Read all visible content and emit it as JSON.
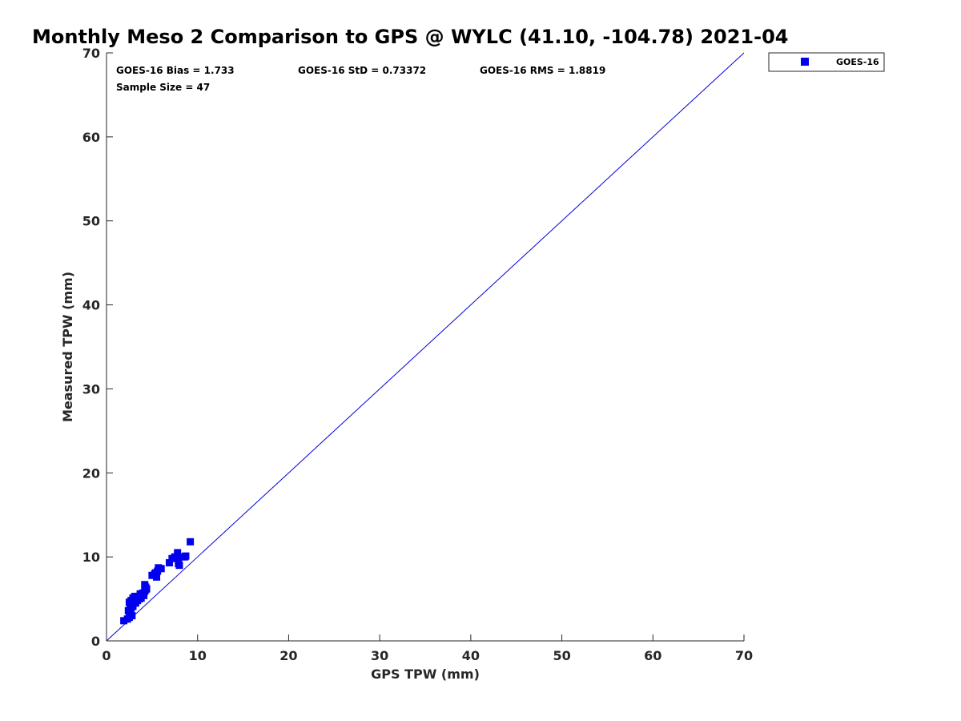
{
  "chart_data": {
    "type": "scatter",
    "title": "Monthly Meso 2 Comparison to GPS @ WYLC (41.10, -104.78) 2021-04",
    "xlabel": "GPS TPW (mm)",
    "ylabel": "Measured TPW (mm)",
    "xlim": [
      0,
      70
    ],
    "ylim": [
      0,
      70
    ],
    "xticks": [
      "0",
      "10",
      "20",
      "30",
      "40",
      "50",
      "60",
      "70"
    ],
    "yticks": [
      "0",
      "10",
      "20",
      "30",
      "40",
      "50",
      "60",
      "70"
    ],
    "grid": false,
    "legend_position": "outside-top-right",
    "reference_line": {
      "label": "1:1 line",
      "from": [
        0,
        0
      ],
      "to": [
        70,
        70
      ],
      "color": "#0000dd"
    },
    "stats": {
      "bias": "GOES-16 Bias = 1.733",
      "std": "GOES-16 StD = 0.73372",
      "rms": "GOES-16 RMS = 1.8819",
      "sample_size": "Sample Size = 47"
    },
    "series": [
      {
        "name": "GOES-16",
        "color": "#0000ee",
        "marker": "square",
        "points": [
          [
            1.9,
            2.4
          ],
          [
            2.3,
            2.6
          ],
          [
            2.5,
            2.8
          ],
          [
            2.6,
            3.3
          ],
          [
            2.4,
            3.6
          ],
          [
            2.7,
            3.9
          ],
          [
            2.9,
            4.1
          ],
          [
            2.5,
            4.6
          ],
          [
            2.7,
            4.8
          ],
          [
            3.0,
            4.6
          ],
          [
            2.9,
            5.1
          ],
          [
            3.1,
            5.3
          ],
          [
            3.4,
            4.8
          ],
          [
            3.6,
            5.0
          ],
          [
            3.5,
            5.3
          ],
          [
            3.8,
            5.1
          ],
          [
            3.9,
            5.5
          ],
          [
            4.1,
            5.4
          ],
          [
            4.0,
            5.7
          ],
          [
            4.2,
            5.9
          ],
          [
            4.3,
            6.1
          ],
          [
            4.3,
            6.4
          ],
          [
            4.2,
            6.7
          ],
          [
            3.2,
            4.5
          ],
          [
            2.8,
            3.0
          ],
          [
            5.0,
            7.8
          ],
          [
            5.3,
            8.0
          ],
          [
            5.5,
            7.6
          ],
          [
            5.6,
            8.3
          ],
          [
            5.7,
            8.7
          ],
          [
            5.4,
            8.1
          ],
          [
            6.9,
            9.3
          ],
          [
            7.2,
            9.8
          ],
          [
            7.5,
            10.0
          ],
          [
            7.8,
            10.5
          ],
          [
            7.9,
            9.2
          ],
          [
            8.2,
            10.0
          ],
          [
            8.6,
            10.0
          ],
          [
            8.7,
            10.1
          ],
          [
            9.2,
            11.8
          ],
          [
            2.6,
            3.0
          ],
          [
            3.3,
            5.0
          ],
          [
            4.4,
            6.2
          ],
          [
            2.6,
            4.3
          ],
          [
            3.7,
            5.6
          ],
          [
            6.0,
            8.6
          ],
          [
            8.0,
            9.0
          ]
        ]
      }
    ]
  }
}
